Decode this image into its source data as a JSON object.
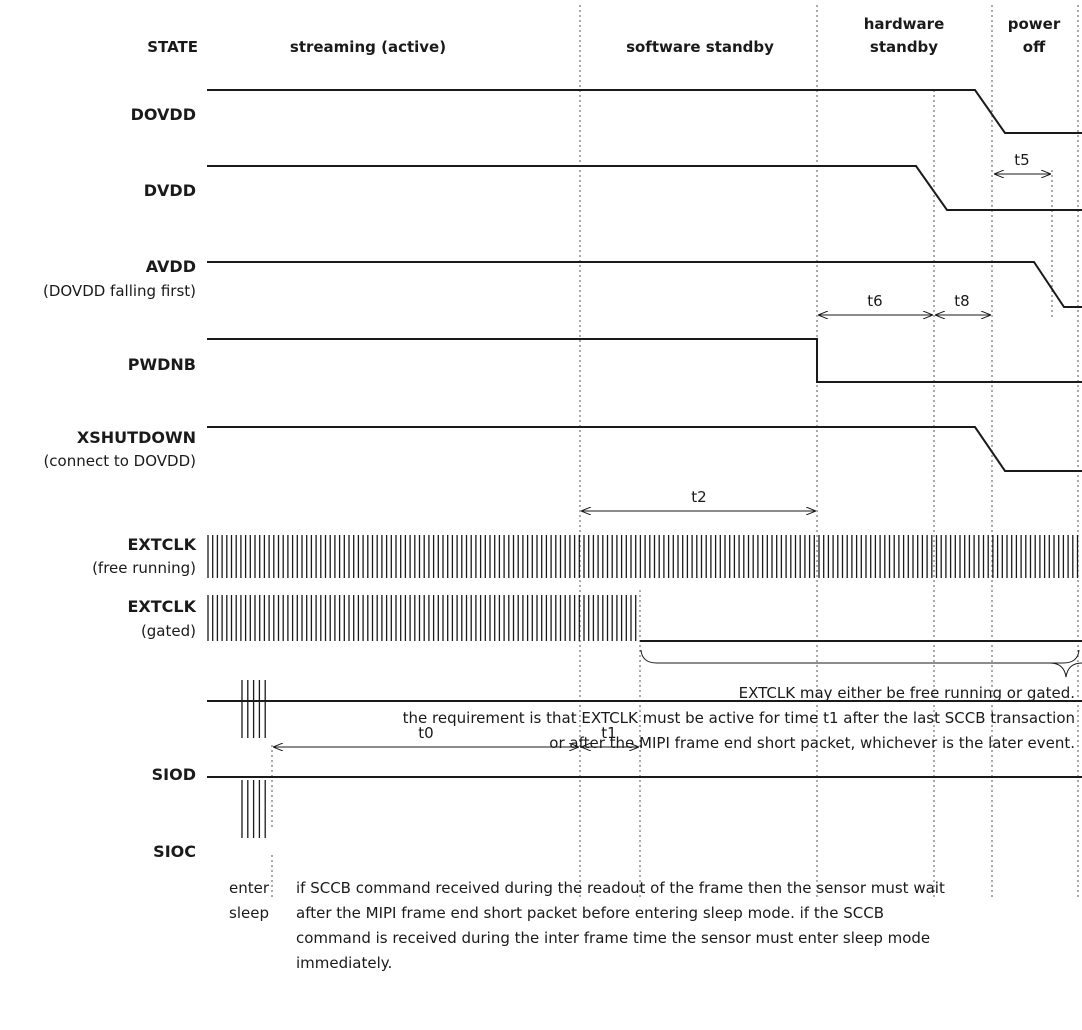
{
  "states": {
    "label": "STATE",
    "streaming": "streaming (active)",
    "software_standby": "software standby",
    "hardware_standby_1": "hardware",
    "hardware_standby_2": "standby",
    "power_off_1": "power",
    "power_off_2": "off"
  },
  "signals": {
    "dovdd": "DOVDD",
    "dvdd": "DVDD",
    "avdd": "AVDD",
    "avdd_note": "(DOVDD falling first)",
    "pwdnb": "PWDNB",
    "xshutdown": "XSHUTDOWN",
    "xshutdown_note": "(connect to DOVDD)",
    "extclk_free": "EXTCLK",
    "extclk_free_note": "(free running)",
    "extclk_gated": "EXTCLK",
    "extclk_gated_note": "(gated)",
    "siod": "SIOD",
    "sioc": "SIOC"
  },
  "timings": {
    "t0": "t0",
    "t1": "t1",
    "t2": "t2",
    "t5": "t5",
    "t6": "t6",
    "t8": "t8"
  },
  "notes": {
    "extclk_line1": "EXTCLK may either be free running or gated.",
    "extclk_line2": "the requirement is that EXTCLK must be active for time t1 after the last SCCB transaction",
    "extclk_line3": "or after the MIPI frame end short packet, whichever is the later event.",
    "enter_sleep_1": "enter",
    "enter_sleep_2": "sleep",
    "sccb_line1": "if SCCB command received during the readout of the frame then the sensor must wait",
    "sccb_line2": "after the MIPI frame end short packet before entering sleep mode. if the SCCB",
    "sccb_line3": "command is received during the inter frame time the sensor must enter sleep mode",
    "sccb_line4": "immediately."
  }
}
